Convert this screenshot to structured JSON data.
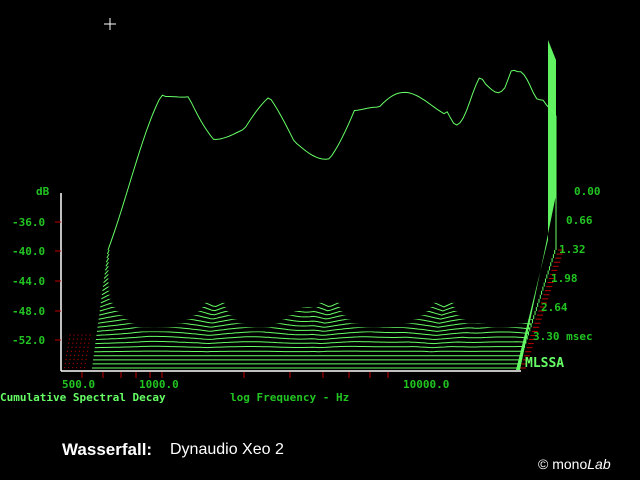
{
  "chart_data": {
    "type": "waterfall",
    "title": "Cumulative Spectral Decay",
    "xlabel": "log Frequency - Hz",
    "ylabel": "dB",
    "zlabel": "msec",
    "x_ticks": [
      "500.0",
      "1000.0",
      "10000.0"
    ],
    "y_ticks": [
      "-36.0",
      "-40.0",
      "-44.0",
      "-48.0",
      "-52.0"
    ],
    "y_range": [
      -54,
      -32
    ],
    "time_ticks": [
      "0.00",
      "0.66",
      "1.32",
      "1.98",
      "2.64",
      "3.30 msec"
    ],
    "time_range_ms": [
      0.0,
      3.3
    ],
    "slices": 30,
    "colors": {
      "trace": "#66ff66",
      "axis": "#ffffff",
      "tick": "#c00000",
      "label": "#22c422",
      "floor_dots": "#990000"
    },
    "grid": false,
    "approx_peaks_hz": [
      700,
      1500,
      2200,
      4200,
      8000,
      12000,
      16000
    ]
  },
  "labels": {
    "db_unit": "dB",
    "y_ticks": [
      "-36.0",
      "-40.0",
      "-44.0",
      "-48.0",
      "-52.0"
    ],
    "t_ticks": [
      "0.00",
      "0.66",
      "1.32",
      "1.98",
      "2.64",
      "3.30 msec"
    ],
    "x_ticks": [
      "500.0",
      "1000.0",
      "10000.0"
    ],
    "footer_left": "Cumulative Spectral Decay",
    "footer_right": "log Frequency - Hz",
    "brand": "MLSSA"
  },
  "caption": {
    "title": "Wasserfall:",
    "subject": "Dynaudio Xeo 2",
    "copyright_symbol": "©",
    "copyright_a": "mono",
    "copyright_b": "Lab"
  }
}
